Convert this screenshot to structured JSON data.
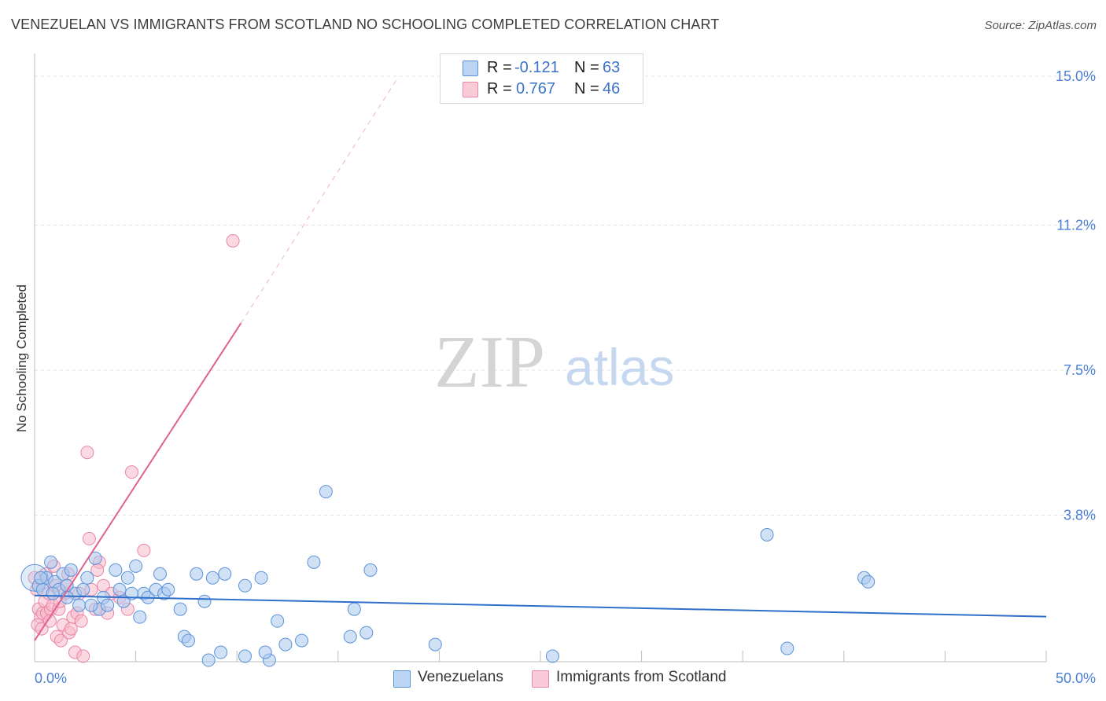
{
  "header": {
    "title": "VENEZUELAN VS IMMIGRANTS FROM SCOTLAND NO SCHOOLING COMPLETED CORRELATION CHART",
    "source": "Source: ZipAtlas.com"
  },
  "watermark": {
    "zip": "ZIP",
    "atlas": "atlas"
  },
  "legend": {
    "rows": [
      {
        "r_label": "R =",
        "r_value": "-0.121",
        "n_label": "N =",
        "n_value": "63"
      },
      {
        "r_label": "R =",
        "r_value": "0.767",
        "n_label": "N =",
        "n_value": "46"
      }
    ]
  },
  "colors": {
    "blue_fill": "#a9c8ef",
    "blue_stroke": "#5b93d8",
    "blue_line": "#2f6fc9",
    "pink_fill": "#f7b9cc",
    "pink_stroke": "#e887a6",
    "pink_line": "#e0628e",
    "axis_text": "#4a7fd4",
    "grid": "#e3e3e3"
  },
  "chart_data": {
    "type": "scatter",
    "title": "VENEZUELAN VS IMMIGRANTS FROM SCOTLAND NO SCHOOLING COMPLETED CORRELATION CHART",
    "ylabel": "No Schooling Completed",
    "xlabel": "",
    "xlim": [
      0,
      50
    ],
    "ylim": [
      0,
      15.5
    ],
    "x_tick_labels": [
      "0.0%",
      "50.0%"
    ],
    "y_ticks": [
      3.8,
      7.5,
      11.2,
      15.0
    ],
    "y_tick_labels": [
      "3.8%",
      "7.5%",
      "11.2%",
      "15.0%"
    ],
    "grid": true,
    "legend_position": "top-center",
    "series": [
      {
        "name": "Venezuelans",
        "r": -0.121,
        "n": 63,
        "trend": {
          "x": [
            0,
            50
          ],
          "y": [
            1.75,
            1.21
          ]
        },
        "points": [
          [
            0.2,
            2.0
          ],
          [
            0.4,
            1.9
          ],
          [
            0.6,
            2.2
          ],
          [
            0.8,
            2.6
          ],
          [
            1.0,
            2.1
          ],
          [
            1.2,
            1.9
          ],
          [
            1.4,
            2.3
          ],
          [
            1.6,
            2.0
          ],
          [
            1.8,
            2.4
          ],
          [
            2.0,
            1.8
          ],
          [
            2.2,
            1.5
          ],
          [
            2.4,
            1.9
          ],
          [
            2.6,
            2.2
          ],
          [
            3.0,
            2.7
          ],
          [
            3.2,
            1.4
          ],
          [
            3.4,
            1.7
          ],
          [
            3.6,
            1.5
          ],
          [
            4.0,
            2.4
          ],
          [
            4.2,
            1.9
          ],
          [
            4.4,
            1.6
          ],
          [
            4.6,
            2.2
          ],
          [
            5.0,
            2.5
          ],
          [
            5.2,
            1.2
          ],
          [
            5.4,
            1.8
          ],
          [
            5.6,
            1.7
          ],
          [
            6.0,
            1.9
          ],
          [
            6.2,
            2.3
          ],
          [
            6.4,
            1.8
          ],
          [
            6.6,
            1.9
          ],
          [
            7.2,
            1.4
          ],
          [
            7.4,
            0.7
          ],
          [
            7.6,
            0.6
          ],
          [
            8.0,
            2.3
          ],
          [
            8.4,
            1.6
          ],
          [
            8.6,
            0.1
          ],
          [
            8.8,
            2.2
          ],
          [
            9.2,
            0.3
          ],
          [
            9.4,
            2.3
          ],
          [
            10.4,
            0.2
          ],
          [
            10.4,
            2.0
          ],
          [
            11.2,
            2.2
          ],
          [
            11.6,
            0.1
          ],
          [
            11.4,
            0.3
          ],
          [
            12.0,
            1.1
          ],
          [
            12.4,
            0.5
          ],
          [
            13.2,
            0.6
          ],
          [
            13.8,
            2.6
          ],
          [
            14.4,
            4.4
          ],
          [
            15.6,
            0.7
          ],
          [
            15.8,
            1.4
          ],
          [
            16.4,
            0.8
          ],
          [
            16.6,
            2.4
          ],
          [
            19.8,
            0.5
          ],
          [
            25.6,
            0.2
          ],
          [
            36.2,
            3.3
          ],
          [
            37.2,
            0.4
          ],
          [
            41.0,
            2.2
          ],
          [
            41.2,
            2.1
          ],
          [
            0.3,
            2.2
          ],
          [
            0.9,
            1.8
          ],
          [
            1.6,
            1.7
          ],
          [
            2.8,
            1.5
          ],
          [
            4.8,
            1.8
          ]
        ]
      },
      {
        "name": "Immigrants from Scotland",
        "r": 0.767,
        "n": 46,
        "trend_solid": {
          "x": [
            0,
            10.2
          ],
          "y": [
            0.6,
            8.7
          ]
        },
        "trend_dashed": {
          "x": [
            10.2,
            18.0
          ],
          "y": [
            8.7,
            15.0
          ]
        },
        "points": [
          [
            0.0,
            2.2
          ],
          [
            0.1,
            1.9
          ],
          [
            0.2,
            1.4
          ],
          [
            0.3,
            1.2
          ],
          [
            0.4,
            1.3
          ],
          [
            0.5,
            1.6
          ],
          [
            0.6,
            1.3
          ],
          [
            0.7,
            1.8
          ],
          [
            0.8,
            1.4
          ],
          [
            0.9,
            1.5
          ],
          [
            1.0,
            2.0
          ],
          [
            1.1,
            0.7
          ],
          [
            1.2,
            1.4
          ],
          [
            1.3,
            0.6
          ],
          [
            1.4,
            1.0
          ],
          [
            1.5,
            1.8
          ],
          [
            1.6,
            2.0
          ],
          [
            1.7,
            0.8
          ],
          [
            1.8,
            0.9
          ],
          [
            1.9,
            1.2
          ],
          [
            2.0,
            0.3
          ],
          [
            2.1,
            1.3
          ],
          [
            2.2,
            1.8
          ],
          [
            2.3,
            1.1
          ],
          [
            2.4,
            0.2
          ],
          [
            2.6,
            5.4
          ],
          [
            2.7,
            3.2
          ],
          [
            2.8,
            1.9
          ],
          [
            3.0,
            1.4
          ],
          [
            3.2,
            2.6
          ],
          [
            3.4,
            2.0
          ],
          [
            3.6,
            1.3
          ],
          [
            3.8,
            1.8
          ],
          [
            4.2,
            1.7
          ],
          [
            4.6,
            1.4
          ],
          [
            4.8,
            4.9
          ],
          [
            5.4,
            2.9
          ],
          [
            9.8,
            10.8
          ],
          [
            0.15,
            1.0
          ],
          [
            0.35,
            0.9
          ],
          [
            0.55,
            2.3
          ],
          [
            0.75,
            1.1
          ],
          [
            0.95,
            2.5
          ],
          [
            1.25,
            1.6
          ],
          [
            1.65,
            2.3
          ],
          [
            3.1,
            2.4
          ]
        ]
      }
    ]
  },
  "bottom_legend": [
    {
      "label": "Venezuelans"
    },
    {
      "label": "Immigrants from Scotland"
    }
  ]
}
